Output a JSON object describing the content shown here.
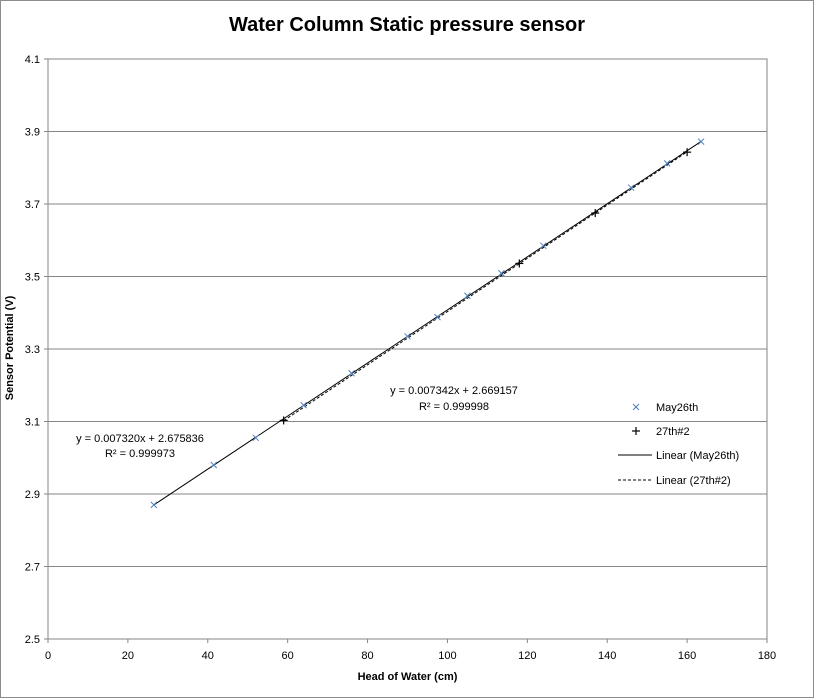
{
  "chart_data": {
    "type": "scatter",
    "title": "Water Column Static pressure sensor",
    "xlabel": "Head of Water (cm)",
    "ylabel": "Sensor Potential (V)",
    "xlim": [
      0,
      180
    ],
    "ylim": [
      2.5,
      4.1
    ],
    "xticks": [
      "0",
      "20",
      "40",
      "60",
      "80",
      "100",
      "120",
      "140",
      "160",
      "180"
    ],
    "yticks": [
      "2.5",
      "2.7",
      "2.9",
      "3.1",
      "3.3",
      "3.5",
      "3.7",
      "3.9",
      "4.1"
    ],
    "grid": "horizontal",
    "legend_position": "right",
    "series": [
      {
        "name": "May26th",
        "marker": "x",
        "color": "#4f81bd",
        "x": [
          26.5,
          41.5,
          52,
          64,
          76,
          90,
          97.5,
          105,
          113.5,
          124,
          146,
          155,
          163.5
        ],
        "y": [
          2.87,
          2.98,
          3.055,
          3.145,
          3.233,
          3.335,
          3.388,
          3.447,
          3.509,
          3.585,
          3.745,
          3.812,
          3.872
        ]
      },
      {
        "name": "27th#2",
        "marker": "+",
        "color": "#000000",
        "x": [
          59,
          118,
          137,
          160
        ],
        "y": [
          3.103,
          3.536,
          3.675,
          3.843
        ]
      }
    ],
    "trendlines": [
      {
        "name": "Linear (May26th)",
        "style": "solid",
        "slope": 0.00732,
        "intercept": 2.675836,
        "x_range": [
          26.5,
          163.5
        ],
        "equation": "y = 0.007320x + 2.675836",
        "r2": "R² = 0.999973"
      },
      {
        "name": "Linear (27th#2)",
        "style": "dashed",
        "slope": 0.007342,
        "intercept": 2.669157,
        "x_range": [
          59,
          160
        ],
        "equation": "y = 0.007342x + 2.669157",
        "r2": "R² = 0.999998"
      }
    ]
  }
}
